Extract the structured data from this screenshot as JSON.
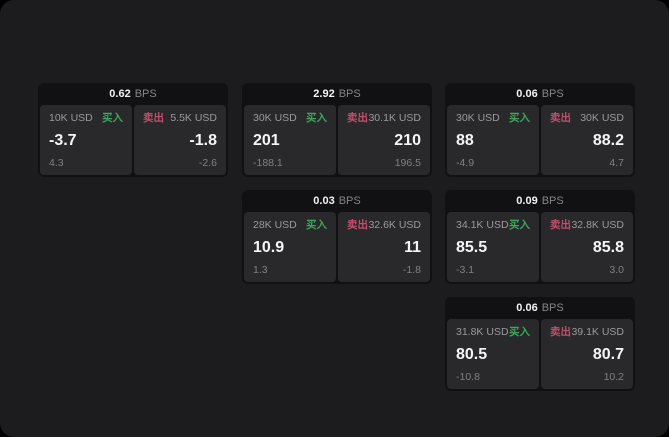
{
  "labels": {
    "bps_unit": "BPS",
    "buy": "买入",
    "sell": "卖出"
  },
  "colors": {
    "background": "#1c1c1e",
    "card_background": "#111113",
    "panel_background": "#29292b",
    "buy_green": "#3ea55c",
    "sell_red": "#c04f6e",
    "text_primary": "#f5f5f5",
    "text_secondary": "#9a9a9e"
  },
  "cards": [
    {
      "bps": "0.62",
      "buy": {
        "size": "10K USD",
        "value": "-3.7",
        "sub": "4.3"
      },
      "sell": {
        "size": "5.5K USD",
        "value": "-1.8",
        "sub": "-2.6"
      }
    },
    {
      "bps": "2.92",
      "buy": {
        "size": "30K USD",
        "value": "201",
        "sub": "-188.1"
      },
      "sell": {
        "size": "30.1K USD",
        "value": "210",
        "sub": "196.5"
      }
    },
    {
      "bps": "0.06",
      "buy": {
        "size": "30K USD",
        "value": "88",
        "sub": "-4.9"
      },
      "sell": {
        "size": "30K USD",
        "value": "88.2",
        "sub": "4.7"
      }
    },
    {
      "bps": "0.03",
      "buy": {
        "size": "28K USD",
        "value": "10.9",
        "sub": "1.3"
      },
      "sell": {
        "size": "32.6K USD",
        "value": "11",
        "sub": "-1.8"
      }
    },
    {
      "bps": "0.09",
      "buy": {
        "size": "34.1K USD",
        "value": "85.5",
        "sub": "-3.1"
      },
      "sell": {
        "size": "32.8K USD",
        "value": "85.8",
        "sub": "3.0"
      }
    },
    {
      "bps": "0.06",
      "buy": {
        "size": "31.8K USD",
        "value": "80.5",
        "sub": "-10.8"
      },
      "sell": {
        "size": "39.1K USD",
        "value": "80.7",
        "sub": "10.2"
      }
    }
  ]
}
